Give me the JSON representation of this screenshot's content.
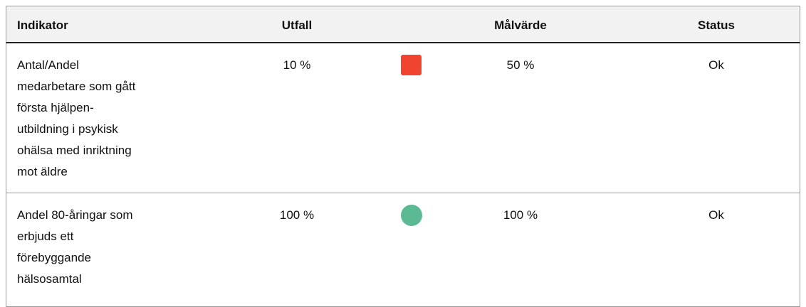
{
  "table": {
    "header": [
      "Indikator",
      "Utfall",
      "Målvärde",
      "Status"
    ],
    "rows": [
      {
        "indikator": [
          "Antal/Andel",
          "medarbetare som gått",
          "första hjälpen-",
          "utbildning i psykisk",
          "ohälsa med inriktning",
          "mot äldre"
        ],
        "utfall": "10 %",
        "malvarde": "50 %",
        "status": "Ok"
      },
      {
        "indikator": [
          "Andel 80-åringar som",
          "erbjuds ett",
          "förebyggande",
          "hälsosamtal"
        ],
        "utfall": "100 %",
        "malvarde": "100 %",
        "status": "Ok"
      }
    ]
  }
}
